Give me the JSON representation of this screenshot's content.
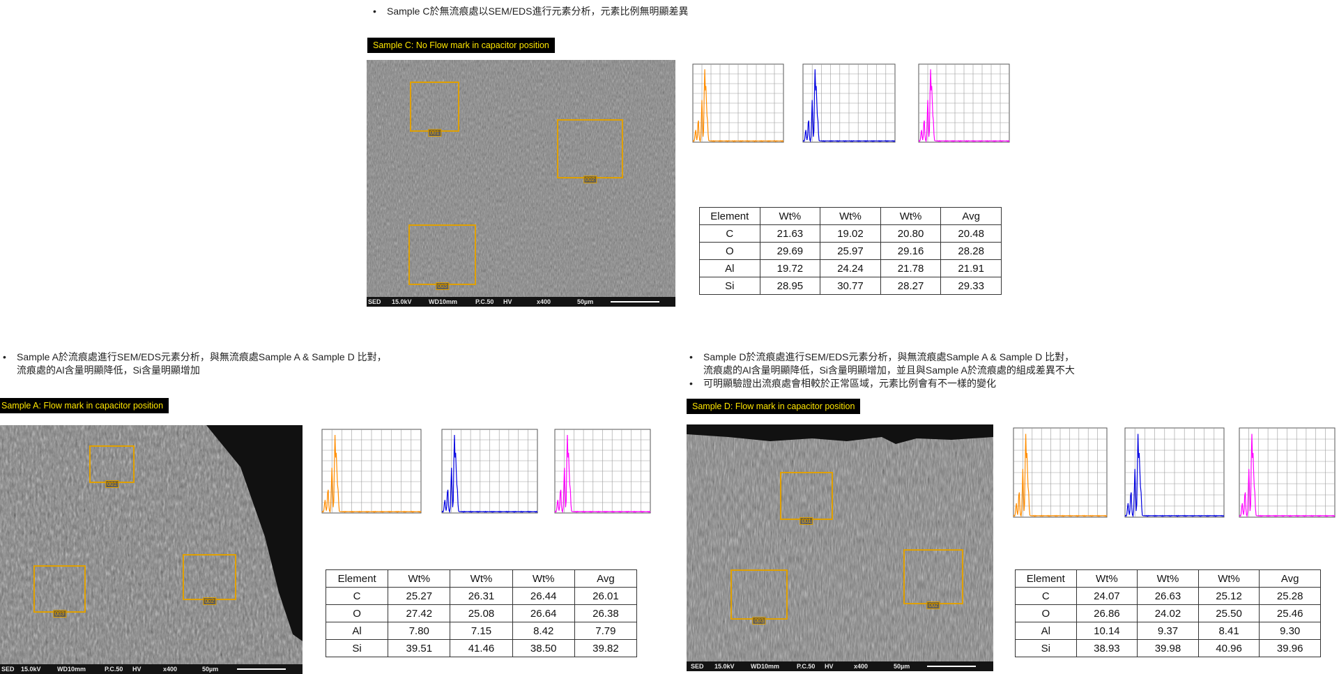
{
  "section_c": {
    "bullet": "Sample C於無流痕處以SEM/EDS進行元素分析，元素比例無明顯差異",
    "label": "Sample C: No Flow mark in capacitor position",
    "sem_bar": {
      "mode": "SED",
      "kv": "15.0kV",
      "wd": "WD10mm",
      "pc": "P.C.50",
      "hv": "HV",
      "mag": "x400",
      "scale": "50µm"
    },
    "boxes": [
      "001",
      "002",
      "003"
    ],
    "spectra_colors": [
      "#ff8c00",
      "#0000e0",
      "#ff00ff"
    ],
    "table": {
      "headers": [
        "Element",
        "Wt%",
        "Wt%",
        "Wt%",
        "Avg"
      ],
      "rows": [
        [
          "C",
          "21.63",
          "19.02",
          "20.80",
          "20.48"
        ],
        [
          "O",
          "29.69",
          "25.97",
          "29.16",
          "28.28"
        ],
        [
          "Al",
          "19.72",
          "24.24",
          "21.78",
          "21.91"
        ],
        [
          "Si",
          "28.95",
          "30.77",
          "28.27",
          "29.33"
        ]
      ]
    }
  },
  "section_a": {
    "bullet_lines": [
      "Sample A於流痕處進行SEM/EDS元素分析，與無流痕處Sample A & Sample D 比對，",
      "流痕處的Al含量明顯降低，Si含量明顯增加"
    ],
    "label": "Sample A: Flow mark in capacitor position",
    "sem_bar": {
      "mode": "SED",
      "kv": "15.0kV",
      "wd": "WD10mm",
      "pc": "P.C.50",
      "hv": "HV",
      "mag": "x400",
      "scale": "50µm"
    },
    "boxes": [
      "001",
      "002",
      "003"
    ],
    "spectra_colors": [
      "#ff8c00",
      "#0000e0",
      "#ff00ff"
    ],
    "table": {
      "headers": [
        "Element",
        "Wt%",
        "Wt%",
        "Wt%",
        "Avg"
      ],
      "rows": [
        [
          "C",
          "25.27",
          "26.31",
          "26.44",
          "26.01"
        ],
        [
          "O",
          "27.42",
          "25.08",
          "26.64",
          "26.38"
        ],
        [
          "Al",
          "7.80",
          "7.15",
          "8.42",
          "7.79"
        ],
        [
          "Si",
          "39.51",
          "41.46",
          "38.50",
          "39.82"
        ]
      ]
    }
  },
  "section_d": {
    "bullet_lines": [
      "Sample D於流痕處進行SEM/EDS元素分析，與無流痕處Sample A & Sample D 比對，",
      "流痕處的Al含量明顯降低，Si含量明顯增加，並且與Sample A於流痕處的組成差異不大"
    ],
    "bullet2": "可明顯驗證出流痕處會相較於正常區域，元素比例會有不一樣的變化",
    "label": "Sample D: Flow mark in capacitor position",
    "sem_bar": {
      "mode": "SED",
      "kv": "15.0kV",
      "wd": "WD10mm",
      "pc": "P.C.50",
      "hv": "HV",
      "mag": "x400",
      "scale": "50µm"
    },
    "boxes": [
      "001",
      "002",
      "003"
    ],
    "spectra_colors": [
      "#ff8c00",
      "#0000e0",
      "#ff00ff"
    ],
    "table": {
      "headers": [
        "Element",
        "Wt%",
        "Wt%",
        "Wt%",
        "Avg"
      ],
      "rows": [
        [
          "C",
          "24.07",
          "26.63",
          "25.12",
          "25.28"
        ],
        [
          "O",
          "26.86",
          "24.02",
          "25.50",
          "25.46"
        ],
        [
          "Al",
          "10.14",
          "9.37",
          "8.41",
          "9.30"
        ],
        [
          "Si",
          "38.93",
          "39.98",
          "40.96",
          "39.96"
        ]
      ]
    }
  }
}
